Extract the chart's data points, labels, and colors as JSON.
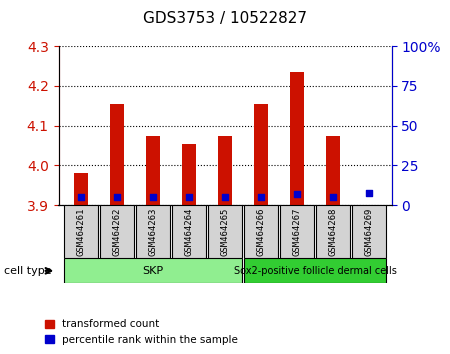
{
  "title": "GDS3753 / 10522827",
  "samples": [
    "GSM464261",
    "GSM464262",
    "GSM464263",
    "GSM464264",
    "GSM464265",
    "GSM464266",
    "GSM464267",
    "GSM464268",
    "GSM464269"
  ],
  "red_values": [
    3.98,
    4.155,
    4.075,
    4.055,
    4.075,
    4.155,
    4.235,
    4.075,
    3.9
  ],
  "blue_values": [
    5,
    5,
    5,
    5,
    5,
    5,
    7,
    5,
    8
  ],
  "ylim_left": [
    3.9,
    4.3
  ],
  "ylim_right": [
    0,
    100
  ],
  "yticks_left": [
    3.9,
    4.0,
    4.1,
    4.2,
    4.3
  ],
  "yticks_right": [
    0,
    25,
    50,
    75,
    100
  ],
  "cell_types": [
    {
      "label": "SKP",
      "samples": [
        0,
        4
      ],
      "color": "#90EE90"
    },
    {
      "label": "Sox2-positive follicle dermal cells",
      "samples": [
        5,
        8
      ],
      "color": "#32CD32"
    }
  ],
  "bar_color": "#CC1100",
  "blue_color": "#0000CC",
  "base_value": 3.9,
  "blue_base": 0,
  "background_color": "#ffffff",
  "plot_bg": "#ffffff",
  "grid_color": "#000000",
  "axis_left_color": "#CC1100",
  "axis_right_color": "#0000CC",
  "legend_items": [
    "transformed count",
    "percentile rank within the sample"
  ],
  "cell_type_label": "cell type"
}
